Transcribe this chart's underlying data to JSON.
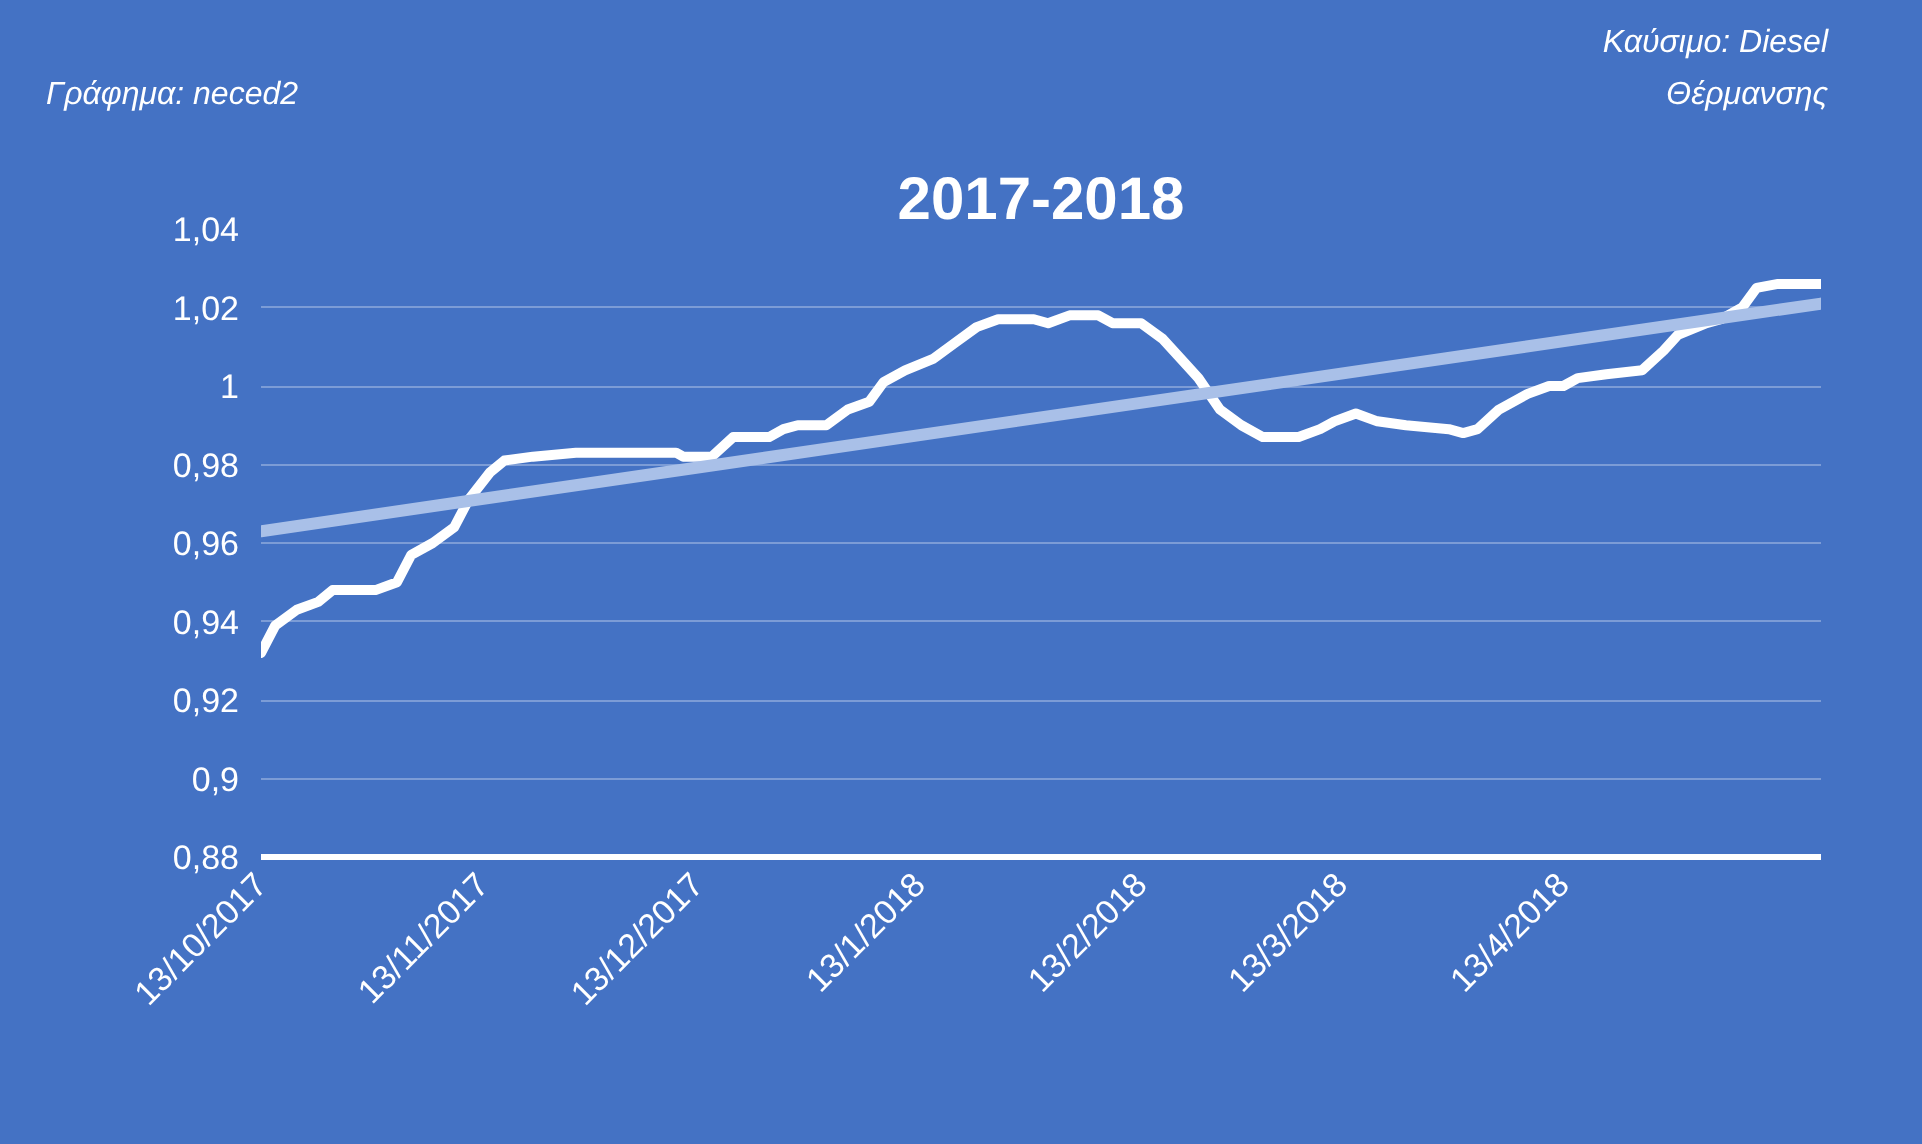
{
  "chart_data": {
    "type": "line",
    "title": "2017-2018",
    "annotations": [
      "Γράφημα: neced2",
      "Καύσιμο: Diesel\nΘέρμανσης"
    ],
    "series": [
      {
        "color": "#ffffff",
        "x": [
          "2017-10-13",
          "2017-10-15",
          "2017-10-18",
          "2017-10-21",
          "2017-10-23",
          "2017-10-29",
          "2017-11-01",
          "2017-11-03",
          "2017-11-06",
          "2017-11-09",
          "2017-11-11",
          "2017-11-14",
          "2017-11-16",
          "2017-11-20",
          "2017-11-26",
          "2017-12-10",
          "2017-12-11",
          "2017-12-15",
          "2017-12-18",
          "2017-12-23",
          "2017-12-25",
          "2017-12-27",
          "2017-12-31",
          "2018-01-03",
          "2018-01-06",
          "2018-01-08",
          "2018-01-11",
          "2018-01-15",
          "2018-01-18",
          "2018-01-21",
          "2018-01-24",
          "2018-01-29",
          "2018-01-31",
          "2018-02-03",
          "2018-02-07",
          "2018-02-09",
          "2018-02-13",
          "2018-02-16",
          "2018-02-19",
          "2018-02-21",
          "2018-02-24",
          "2018-02-27",
          "2018-03-02",
          "2018-03-04",
          "2018-03-07",
          "2018-03-10",
          "2018-03-12",
          "2018-03-15",
          "2018-03-18",
          "2018-03-22",
          "2018-03-28",
          "2018-03-30",
          "2018-04-01",
          "2018-04-04",
          "2018-04-08",
          "2018-04-11",
          "2018-04-13",
          "2018-04-15",
          "2018-04-19",
          "2018-04-24",
          "2018-04-27",
          "2018-04-29",
          "2018-05-03",
          "2018-05-05",
          "2018-05-08",
          "2018-05-10",
          "2018-05-13",
          "2018-05-19"
        ],
        "values": [
          0.932,
          0.939,
          0.943,
          0.945,
          0.948,
          0.948,
          0.95,
          0.957,
          0.96,
          0.964,
          0.971,
          0.978,
          0.981,
          0.982,
          0.983,
          0.983,
          0.982,
          0.982,
          0.987,
          0.987,
          0.989,
          0.99,
          0.99,
          0.994,
          0.996,
          1.001,
          1.004,
          1.007,
          1.011,
          1.015,
          1.017,
          1.017,
          1.016,
          1.018,
          1.018,
          1.016,
          1.016,
          1.012,
          1.006,
          1.002,
          0.994,
          0.99,
          0.987,
          0.987,
          0.987,
          0.989,
          0.991,
          0.993,
          0.991,
          0.99,
          0.989,
          0.988,
          0.989,
          0.994,
          0.998,
          1.0,
          1.0,
          1.002,
          1.003,
          1.004,
          1.009,
          1.013,
          1.016,
          1.017,
          1.02,
          1.025,
          1.026,
          1.026
        ]
      },
      {
        "type": "line",
        "color": "#a9c0e8",
        "x": [
          "2017-10-13",
          "2018-05-19"
        ],
        "values": [
          0.963,
          1.021
        ]
      }
    ],
    "xlim": [
      "2017-10-13",
      "2018-05-19"
    ],
    "xticks": [
      {
        "value": "2017-10-13",
        "label": "13/10/2017"
      },
      {
        "value": "2017-11-13",
        "label": "13/11/2017"
      },
      {
        "value": "2017-12-13",
        "label": "13/12/2017"
      },
      {
        "value": "2018-01-13",
        "label": "13/1/2018"
      },
      {
        "value": "2018-02-13",
        "label": "13/2/2018"
      },
      {
        "value": "2018-03-13",
        "label": "13/3/2018"
      },
      {
        "value": "2018-04-13",
        "label": "13/4/2018"
      }
    ],
    "ylim": [
      0.88,
      1.04
    ],
    "yticks": [
      {
        "value": 0.88,
        "label": "0,88"
      },
      {
        "value": 0.9,
        "label": "0,9"
      },
      {
        "value": 0.92,
        "label": "0,92"
      },
      {
        "value": 0.94,
        "label": "0,94"
      },
      {
        "value": 0.96,
        "label": "0,96"
      },
      {
        "value": 0.98,
        "label": "0,98"
      },
      {
        "value": 1.0,
        "label": "1"
      },
      {
        "value": 1.02,
        "label": "1,02"
      },
      {
        "value": 1.04,
        "label": "1,04"
      }
    ],
    "grid": "y",
    "marker": "none",
    "line_style": "solid"
  }
}
